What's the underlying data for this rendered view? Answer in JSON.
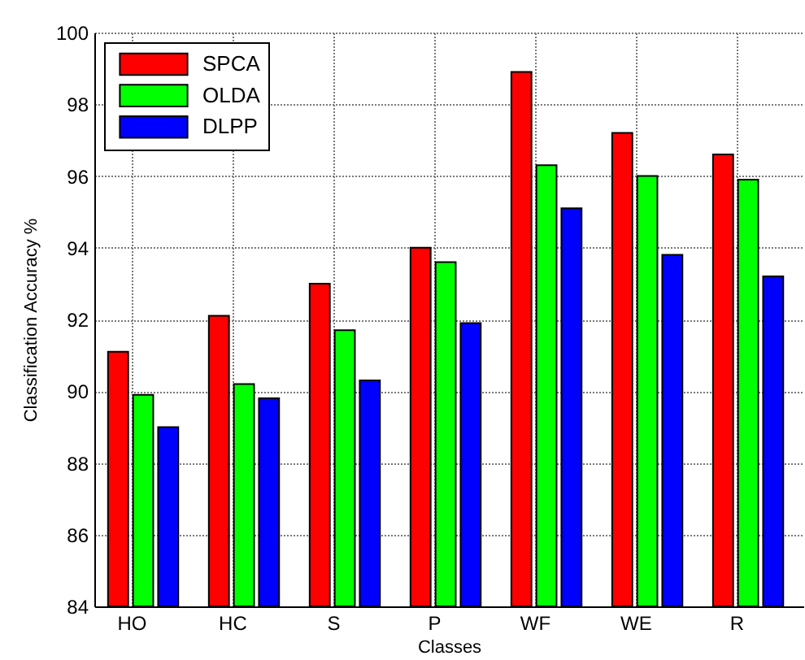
{
  "chart_data": {
    "type": "bar",
    "xlabel": "Classes",
    "ylabel": "Classification Accuracy %",
    "categories": [
      "HO",
      "HC",
      "S",
      "P",
      "WF",
      "WE",
      "R"
    ],
    "series": [
      {
        "name": "SPCA",
        "color": "#ff0000",
        "values": [
          91.1,
          92.1,
          93.0,
          94.0,
          98.9,
          97.2,
          96.6
        ]
      },
      {
        "name": "OLDA",
        "color": "#00ff00",
        "values": [
          89.9,
          90.2,
          91.7,
          93.6,
          96.3,
          96.0,
          95.9
        ]
      },
      {
        "name": "DLPP",
        "color": "#0000ff",
        "values": [
          89.0,
          89.8,
          90.3,
          91.9,
          95.1,
          93.8,
          93.2
        ]
      }
    ],
    "ylim": [
      84,
      100
    ],
    "yticks": [
      84,
      86,
      88,
      90,
      92,
      94,
      96,
      98,
      100
    ],
    "grid": true,
    "legend": "top left"
  }
}
